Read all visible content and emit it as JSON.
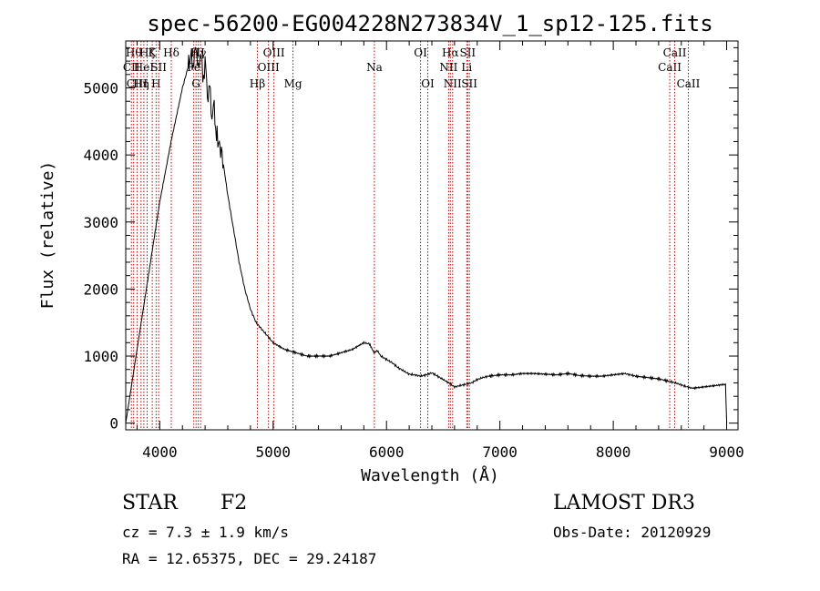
{
  "chart_data": {
    "type": "line",
    "title": "spec-56200-EG004228N273834V_1_sp12-125.fits",
    "xlabel": "Wavelength (Å)",
    "ylabel": "Flux (relative)",
    "xlim": [
      3700,
      9100
    ],
    "ylim": [
      -100,
      5700
    ],
    "x_ticks": [
      4000,
      5000,
      6000,
      7000,
      8000,
      9000
    ],
    "y_ticks": [
      0,
      1000,
      2000,
      3000,
      4000,
      5000
    ],
    "grid": false,
    "series": [
      {
        "x": [
          3700,
          3800,
          3900,
          4000,
          4100,
          4200,
          4280,
          4300,
          4320,
          4340,
          4360,
          4380,
          4400,
          4420,
          4440,
          4460,
          4480,
          4500,
          4550,
          4600,
          4650,
          4700,
          4750,
          4800,
          4850,
          4900,
          4950,
          5000,
          5100,
          5200,
          5300,
          5400,
          5500,
          5600,
          5700,
          5800,
          5850,
          5890,
          5920,
          5950,
          6000,
          6050,
          6100,
          6150,
          6200,
          6250,
          6300,
          6350,
          6400,
          6450,
          6500,
          6550,
          6600,
          6650,
          6700,
          6750,
          6800,
          6850,
          6900,
          7000,
          7100,
          7200,
          7300,
          7400,
          7500,
          7600,
          7700,
          7800,
          7900,
          8000,
          8100,
          8150,
          8200,
          8300,
          8400,
          8500,
          8550,
          8600,
          8650,
          8700,
          8800,
          8900,
          8990,
          9000
        ],
        "y": [
          0,
          1100,
          2200,
          3300,
          4200,
          5000,
          5500,
          5300,
          5700,
          5200,
          5600,
          5100,
          5400,
          4900,
          5000,
          4600,
          4700,
          4300,
          4000,
          3400,
          2900,
          2400,
          2000,
          1700,
          1500,
          1400,
          1300,
          1200,
          1100,
          1050,
          1000,
          1000,
          1000,
          1050,
          1100,
          1200,
          1180,
          1050,
          1080,
          1000,
          950,
          900,
          830,
          780,
          730,
          720,
          700,
          720,
          750,
          700,
          650,
          600,
          540,
          560,
          580,
          600,
          650,
          680,
          700,
          720,
          720,
          740,
          740,
          730,
          720,
          740,
          710,
          700,
          700,
          720,
          740,
          720,
          700,
          680,
          660,
          620,
          600,
          570,
          540,
          520,
          540,
          560,
          580,
          0
        ]
      }
    ],
    "lines": [
      {
        "x": 3750,
        "label": "CII",
        "row": 2
      },
      {
        "x": 3770,
        "label": "Hθ",
        "row": 1
      },
      {
        "x": 3800,
        "label": "CIII",
        "row": 3
      },
      {
        "x": 3835,
        "label": "Hη",
        "row": 3
      },
      {
        "x": 3860,
        "label": "HeI",
        "row": 2
      },
      {
        "x": 3889,
        "label": "Hζ",
        "row": 1
      },
      {
        "x": 3934,
        "label": "K",
        "row": 1
      },
      {
        "x": 3968,
        "label": "H",
        "row": 3
      },
      {
        "x": 3990,
        "label": "SII",
        "row": 2
      },
      {
        "x": 4102,
        "label": "Hδ",
        "row": 1
      },
      {
        "x": 4300,
        "label": "Fe",
        "row": 2
      },
      {
        "x": 4320,
        "label": "G",
        "row": 3
      },
      {
        "x": 4340,
        "label": "Hγ",
        "row": 1
      },
      {
        "x": 4360,
        "label": "II",
        "row": 1
      },
      {
        "x": 4861,
        "label": "Hβ",
        "row": 3
      },
      {
        "x": 4959,
        "label": "OIII",
        "row": 2
      },
      {
        "x": 5007,
        "label": "OIII",
        "row": 1
      },
      {
        "x": 5175,
        "label": "Mg",
        "row": 3
      },
      {
        "x": 5893,
        "label": "Na",
        "row": 2
      },
      {
        "x": 6300,
        "label": "OI",
        "row": 1
      },
      {
        "x": 6364,
        "label": "OI",
        "row": 3
      },
      {
        "x": 6548,
        "label": "NII",
        "row": 2
      },
      {
        "x": 6563,
        "label": "Hα",
        "row": 1
      },
      {
        "x": 6583,
        "label": "NII",
        "row": 3
      },
      {
        "x": 6708,
        "label": "Li",
        "row": 2
      },
      {
        "x": 6716,
        "label": "SII",
        "row": 1
      },
      {
        "x": 6731,
        "label": "SII",
        "row": 3
      },
      {
        "x": 8498,
        "label": "CaII",
        "row": 2
      },
      {
        "x": 8542,
        "label": "CaII",
        "row": 1
      },
      {
        "x": 8662,
        "label": "CaII",
        "row": 3
      }
    ]
  },
  "info": {
    "class": "STAR",
    "subclass": "F2",
    "survey": "LAMOST DR3",
    "cz": "cz = 7.3 ± 1.9 km/s",
    "obs_date": "Obs-Date: 20120929",
    "coords": "RA =  12.65375, DEC =  29.24187"
  }
}
